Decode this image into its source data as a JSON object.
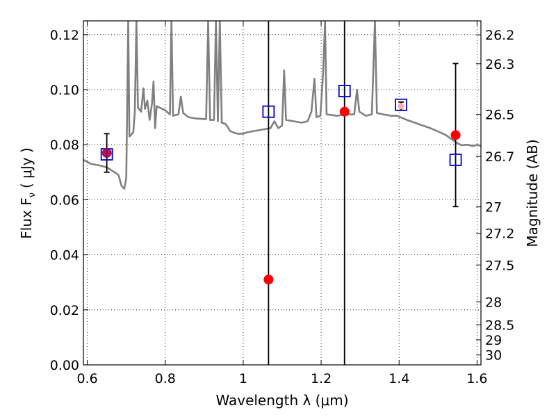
{
  "chart_data": {
    "type": "scatter",
    "xlabel": "Wavelength  λ (μm)",
    "ylabel_left": "Flux  F",
    "ylabel_left_sub": "ν",
    "ylabel_left_unit": "( μJy )",
    "ylabel_right": "Magnitude (AB)",
    "xlim": [
      0.59,
      1.61
    ],
    "ylim": [
      0.0,
      0.125
    ],
    "grid": true,
    "x_ticks": [
      0.6,
      0.8,
      1.0,
      1.2,
      1.4,
      1.6
    ],
    "x_tick_labels": [
      "0.6",
      "0.8",
      "1",
      "1.2",
      "1.4",
      "1.6"
    ],
    "y_ticks": [
      0.0,
      0.02,
      0.04,
      0.06,
      0.08,
      0.1,
      0.12
    ],
    "y_tick_labels": [
      "0.00",
      "0.02",
      "0.04",
      "0.06",
      "0.08",
      "0.10",
      "0.12"
    ],
    "mag_ticks": [
      {
        "label": "26.2",
        "flux": 0.1199
      },
      {
        "label": "26.3",
        "flux": 0.1094
      },
      {
        "label": "26.5",
        "flux": 0.091
      },
      {
        "label": "26.7",
        "flux": 0.0757
      },
      {
        "label": "27",
        "flux": 0.0574
      },
      {
        "label": "27.2",
        "flux": 0.0478
      },
      {
        "label": "27.5",
        "flux": 0.0363
      },
      {
        "label": "28",
        "flux": 0.0229
      },
      {
        "label": "28.5",
        "flux": 0.0145
      },
      {
        "label": "29",
        "flux": 0.0091
      },
      {
        "label": "30",
        "flux": 0.0036
      }
    ],
    "observed": {
      "color": "#ff0000",
      "points": [
        {
          "x": 0.65,
          "y": 0.077,
          "yerr_low": 0.07,
          "yerr_high": 0.084
        },
        {
          "x": 1.065,
          "y": 0.031,
          "yerr_low": 0.0,
          "yerr_high": 0.125
        },
        {
          "x": 1.26,
          "y": 0.092,
          "yerr_low": 0.0,
          "yerr_high": 0.125
        },
        {
          "x": 1.405,
          "y": 0.094,
          "yerr_low": 0.0925,
          "yerr_high": 0.0955
        },
        {
          "x": 1.545,
          "y": 0.0835,
          "yerr_low": 0.0575,
          "yerr_high": 0.1095
        }
      ]
    },
    "model": {
      "color": "#0000cc",
      "points": [
        {
          "x": 0.65,
          "y": 0.0765
        },
        {
          "x": 1.065,
          "y": 0.092
        },
        {
          "x": 1.26,
          "y": 0.0995
        },
        {
          "x": 1.405,
          "y": 0.0945
        },
        {
          "x": 1.545,
          "y": 0.0745
        }
      ]
    },
    "spectrum": {
      "color": "#808080",
      "points": [
        [
          0.59,
          0.0745
        ],
        [
          0.61,
          0.073
        ],
        [
          0.63,
          0.0725
        ],
        [
          0.65,
          0.0718
        ],
        [
          0.67,
          0.07
        ],
        [
          0.68,
          0.069
        ],
        [
          0.688,
          0.065
        ],
        [
          0.695,
          0.064
        ],
        [
          0.7,
          0.068
        ],
        [
          0.705,
          0.125
        ],
        [
          0.708,
          0.083
        ],
        [
          0.712,
          0.0835
        ],
        [
          0.718,
          0.0845
        ],
        [
          0.722,
          0.092
        ],
        [
          0.726,
          0.125
        ],
        [
          0.73,
          0.0935
        ],
        [
          0.738,
          0.092
        ],
        [
          0.744,
          0.1005
        ],
        [
          0.748,
          0.093
        ],
        [
          0.754,
          0.096
        ],
        [
          0.76,
          0.089
        ],
        [
          0.766,
          0.095
        ],
        [
          0.77,
          0.103
        ],
        [
          0.774,
          0.086
        ],
        [
          0.778,
          0.094
        ],
        [
          0.8,
          0.0925
        ],
        [
          0.812,
          0.091
        ],
        [
          0.816,
          0.125
        ],
        [
          0.82,
          0.0905
        ],
        [
          0.834,
          0.091
        ],
        [
          0.84,
          0.0975
        ],
        [
          0.846,
          0.0915
        ],
        [
          0.86,
          0.09
        ],
        [
          0.88,
          0.0895
        ],
        [
          0.905,
          0.0893
        ],
        [
          0.91,
          0.125
        ],
        [
          0.915,
          0.089
        ],
        [
          0.925,
          0.089
        ],
        [
          0.93,
          0.125
        ],
        [
          0.935,
          0.0885
        ],
        [
          0.94,
          0.125
        ],
        [
          0.945,
          0.088
        ],
        [
          0.955,
          0.0875
        ],
        [
          0.962,
          0.086
        ],
        [
          0.966,
          0.085
        ],
        [
          0.974,
          0.0845
        ],
        [
          0.985,
          0.084
        ],
        [
          1.0,
          0.084
        ],
        [
          1.01,
          0.0845
        ],
        [
          1.03,
          0.085
        ],
        [
          1.05,
          0.0855
        ],
        [
          1.07,
          0.086
        ],
        [
          1.08,
          0.0885
        ],
        [
          1.09,
          0.086
        ],
        [
          1.1,
          0.087
        ],
        [
          1.105,
          0.107
        ],
        [
          1.11,
          0.089
        ],
        [
          1.13,
          0.0885
        ],
        [
          1.15,
          0.088
        ],
        [
          1.165,
          0.0885
        ],
        [
          1.175,
          0.092
        ],
        [
          1.183,
          0.104
        ],
        [
          1.188,
          0.09
        ],
        [
          1.198,
          0.0905
        ],
        [
          1.205,
          0.106
        ],
        [
          1.21,
          0.125
        ],
        [
          1.214,
          0.091
        ],
        [
          1.24,
          0.0905
        ],
        [
          1.265,
          0.091
        ],
        [
          1.285,
          0.091
        ],
        [
          1.292,
          0.1
        ],
        [
          1.298,
          0.092
        ],
        [
          1.315,
          0.0905
        ],
        [
          1.33,
          0.091
        ],
        [
          1.338,
          0.125
        ],
        [
          1.343,
          0.0915
        ],
        [
          1.36,
          0.091
        ],
        [
          1.38,
          0.0905
        ],
        [
          1.395,
          0.0905
        ],
        [
          1.42,
          0.089
        ],
        [
          1.44,
          0.088
        ],
        [
          1.46,
          0.087
        ],
        [
          1.48,
          0.086
        ],
        [
          1.5,
          0.0848
        ],
        [
          1.52,
          0.0835
        ],
        [
          1.535,
          0.082
        ],
        [
          1.55,
          0.0805
        ],
        [
          1.56,
          0.0798
        ],
        [
          1.575,
          0.08
        ],
        [
          1.59,
          0.0795
        ],
        [
          1.6,
          0.08
        ],
        [
          1.61,
          0.0795
        ]
      ]
    }
  }
}
